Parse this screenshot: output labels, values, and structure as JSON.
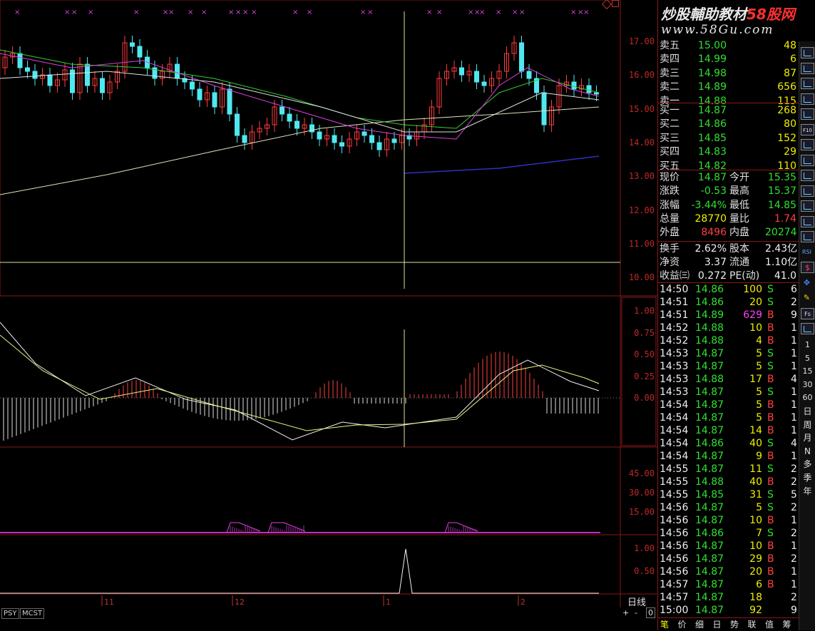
{
  "chart": {
    "period_label": "日线",
    "price_ticks": [
      "17.00",
      "16.00",
      "15.00",
      "14.00",
      "13.00",
      "12.00",
      "11.00",
      "10.00"
    ],
    "macd_ticks": [
      "1.00",
      "0.75",
      "0.50",
      "0.25",
      "0.00"
    ],
    "psy_ticks": [
      "45.00",
      "30.00",
      "15.00"
    ],
    "mcst_ticks": [
      "1.00",
      "0.50"
    ],
    "date_labels": [
      "11",
      "12",
      "1",
      "2"
    ],
    "indicator_tabs": [
      "PSY",
      "MCST"
    ],
    "scroll_buttons": [
      "+",
      "-",
      "0"
    ]
  },
  "logo": {
    "text_main": "炒股輔助教材",
    "text_red": "58股网",
    "url": "www.58Gu.com"
  },
  "orderbook": {
    "asks": [
      {
        "label": "卖五",
        "price": "15.00",
        "vol": "48"
      },
      {
        "label": "卖四",
        "price": "14.99",
        "vol": "6"
      },
      {
        "label": "卖三",
        "price": "14.98",
        "vol": "87"
      },
      {
        "label": "卖二",
        "price": "14.89",
        "vol": "656"
      },
      {
        "label": "卖一",
        "price": "14.88",
        "vol": "115"
      }
    ],
    "bids": [
      {
        "label": "买一",
        "price": "14.87",
        "vol": "268"
      },
      {
        "label": "买二",
        "price": "14.86",
        "vol": "80"
      },
      {
        "label": "买三",
        "price": "14.85",
        "vol": "152"
      },
      {
        "label": "买四",
        "price": "14.83",
        "vol": "29"
      },
      {
        "label": "买五",
        "price": "14.82",
        "vol": "110"
      }
    ]
  },
  "quote": [
    {
      "l1": "现价",
      "v1": "14.87",
      "c1": "green",
      "l2": "今开",
      "v2": "15.35",
      "c2": "green"
    },
    {
      "l1": "涨跌",
      "v1": "-0.53",
      "c1": "green",
      "l2": "最高",
      "v2": "15.37",
      "c2": "green"
    },
    {
      "l1": "涨幅",
      "v1": "-3.44%",
      "c1": "green",
      "l2": "最低",
      "v2": "14.85",
      "c2": "green"
    },
    {
      "l1": "总量",
      "v1": "28770",
      "c1": "yellow",
      "l2": "量比",
      "v2": "1.74",
      "c2": "red2"
    },
    {
      "l1": "外盘",
      "v1": "8496",
      "c1": "red2",
      "l2": "内盘",
      "v2": "20274",
      "c2": "green"
    },
    {
      "l1": "换手",
      "v1": "2.62%",
      "c1": "white",
      "l2": "股本",
      "v2": "2.43亿",
      "c2": "white"
    },
    {
      "l1": "净资",
      "v1": "3.37",
      "c1": "white",
      "l2": "流通",
      "v2": "1.10亿",
      "c2": "white"
    },
    {
      "l1": "收益㈢",
      "v1": "0.272",
      "c1": "white",
      "l2": "PE(动)",
      "v2": "41.0",
      "c2": "white"
    }
  ],
  "ticks": [
    {
      "t": "14:50",
      "p": "14.86",
      "v": "100",
      "s": "S",
      "n": "6"
    },
    {
      "t": "14:51",
      "p": "14.86",
      "v": "20",
      "s": "S",
      "n": "2"
    },
    {
      "t": "14:51",
      "p": "14.89",
      "v": "629",
      "s": "B",
      "n": "9"
    },
    {
      "t": "14:52",
      "p": "14.88",
      "v": "10",
      "s": "B",
      "n": "1"
    },
    {
      "t": "14:52",
      "p": "14.88",
      "v": "4",
      "s": "B",
      "n": "1"
    },
    {
      "t": "14:53",
      "p": "14.87",
      "v": "5",
      "s": "S",
      "n": "1"
    },
    {
      "t": "14:53",
      "p": "14.87",
      "v": "5",
      "s": "S",
      "n": "1"
    },
    {
      "t": "14:53",
      "p": "14.88",
      "v": "17",
      "s": "B",
      "n": "4"
    },
    {
      "t": "14:53",
      "p": "14.87",
      "v": "5",
      "s": "S",
      "n": "1"
    },
    {
      "t": "14:54",
      "p": "14.87",
      "v": "5",
      "s": "B",
      "n": "1"
    },
    {
      "t": "14:54",
      "p": "14.87",
      "v": "5",
      "s": "B",
      "n": "1"
    },
    {
      "t": "14:54",
      "p": "14.87",
      "v": "14",
      "s": "B",
      "n": "1"
    },
    {
      "t": "14:54",
      "p": "14.86",
      "v": "40",
      "s": "S",
      "n": "4"
    },
    {
      "t": "14:54",
      "p": "14.87",
      "v": "9",
      "s": "B",
      "n": "1"
    },
    {
      "t": "14:55",
      "p": "14.87",
      "v": "11",
      "s": "S",
      "n": "2"
    },
    {
      "t": "14:55",
      "p": "14.88",
      "v": "40",
      "s": "B",
      "n": "2"
    },
    {
      "t": "14:55",
      "p": "14.85",
      "v": "31",
      "s": "S",
      "n": "5"
    },
    {
      "t": "14:56",
      "p": "14.87",
      "v": "5",
      "s": "S",
      "n": "2"
    },
    {
      "t": "14:56",
      "p": "14.87",
      "v": "10",
      "s": "B",
      "n": "1"
    },
    {
      "t": "14:56",
      "p": "14.86",
      "v": "7",
      "s": "S",
      "n": "2"
    },
    {
      "t": "14:56",
      "p": "14.87",
      "v": "10",
      "s": "B",
      "n": "1"
    },
    {
      "t": "14:56",
      "p": "14.87",
      "v": "29",
      "s": "B",
      "n": "2"
    },
    {
      "t": "14:56",
      "p": "14.87",
      "v": "20",
      "s": "B",
      "n": "1"
    },
    {
      "t": "14:57",
      "p": "14.87",
      "v": "6",
      "s": "B",
      "n": "1"
    },
    {
      "t": "14:57",
      "p": "14.87",
      "v": "18",
      "s": "",
      "n": "2"
    },
    {
      "t": "15:00",
      "p": "14.87",
      "v": "92",
      "s": "",
      "n": "9"
    }
  ],
  "bottom_tabs": [
    "笔",
    "价",
    "细",
    "日",
    "势",
    "联",
    "值",
    "筹"
  ],
  "toolbar": [
    "1",
    "5",
    "15",
    "30",
    "60",
    "日",
    "周",
    "月",
    "N",
    "多",
    "季",
    "年"
  ]
}
